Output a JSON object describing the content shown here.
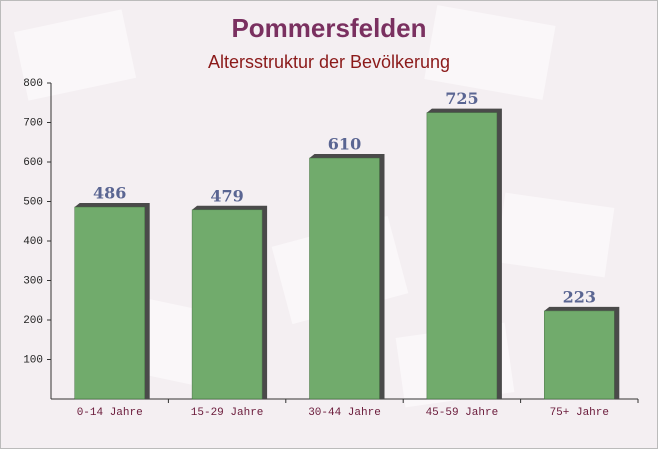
{
  "chart_data": {
    "type": "bar",
    "title": "Pommersfelden",
    "subtitle": "Altersstruktur der Bevölkerung",
    "categories": [
      "0-14 Jahre",
      "15-29 Jahre",
      "30-44 Jahre",
      "45-59 Jahre",
      "75+ Jahre"
    ],
    "values": [
      486,
      479,
      610,
      725,
      223
    ],
    "color": "#6aa765",
    "ylim": [
      0,
      800
    ],
    "yticks": [
      100,
      200,
      300,
      400,
      500,
      600,
      700,
      800
    ],
    "grid": false
  }
}
